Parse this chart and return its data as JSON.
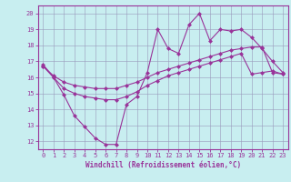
{
  "xlabel": "Windchill (Refroidissement éolien,°C)",
  "bg_color": "#c8eef0",
  "line_color": "#993399",
  "xlim": [
    -0.5,
    23.5
  ],
  "ylim": [
    11.5,
    20.5
  ],
  "yticks": [
    12,
    13,
    14,
    15,
    16,
    17,
    18,
    19,
    20
  ],
  "xticks": [
    0,
    1,
    2,
    3,
    4,
    5,
    6,
    7,
    8,
    9,
    10,
    11,
    12,
    13,
    14,
    15,
    16,
    17,
    18,
    19,
    20,
    21,
    22,
    23
  ],
  "line1_x": [
    0,
    1,
    2,
    3,
    4,
    5,
    6,
    7,
    8,
    9,
    10,
    11,
    12,
    13,
    14,
    15,
    16,
    17,
    18,
    19,
    20,
    21,
    22,
    23
  ],
  "line1_y": [
    16.8,
    16.0,
    14.9,
    13.6,
    12.9,
    12.2,
    11.8,
    11.8,
    14.3,
    14.8,
    16.3,
    19.0,
    17.8,
    17.5,
    19.3,
    20.0,
    18.3,
    19.0,
    18.9,
    19.0,
    18.5,
    17.8,
    17.0,
    16.3
  ],
  "line2_x": [
    0,
    1,
    2,
    3,
    4,
    5,
    6,
    7,
    8,
    9,
    10,
    11,
    12,
    13,
    14,
    15,
    16,
    17,
    18,
    19,
    20,
    21,
    22,
    23
  ],
  "line2_y": [
    16.7,
    16.1,
    15.7,
    15.5,
    15.4,
    15.3,
    15.3,
    15.3,
    15.5,
    15.7,
    16.0,
    16.3,
    16.5,
    16.7,
    16.9,
    17.1,
    17.3,
    17.5,
    17.7,
    17.8,
    17.9,
    17.9,
    16.3,
    16.2
  ],
  "line3_x": [
    0,
    1,
    2,
    3,
    4,
    5,
    6,
    7,
    8,
    9,
    10,
    11,
    12,
    13,
    14,
    15,
    16,
    17,
    18,
    19,
    20,
    21,
    22,
    23
  ],
  "line3_y": [
    16.7,
    16.0,
    15.3,
    15.0,
    14.8,
    14.7,
    14.6,
    14.6,
    14.8,
    15.1,
    15.5,
    15.8,
    16.1,
    16.3,
    16.5,
    16.7,
    16.9,
    17.1,
    17.3,
    17.5,
    16.2,
    16.3,
    16.4,
    16.2
  ],
  "grid_color": "#9999bb",
  "marker": "D",
  "markersize": 2.5,
  "linewidth": 0.8
}
